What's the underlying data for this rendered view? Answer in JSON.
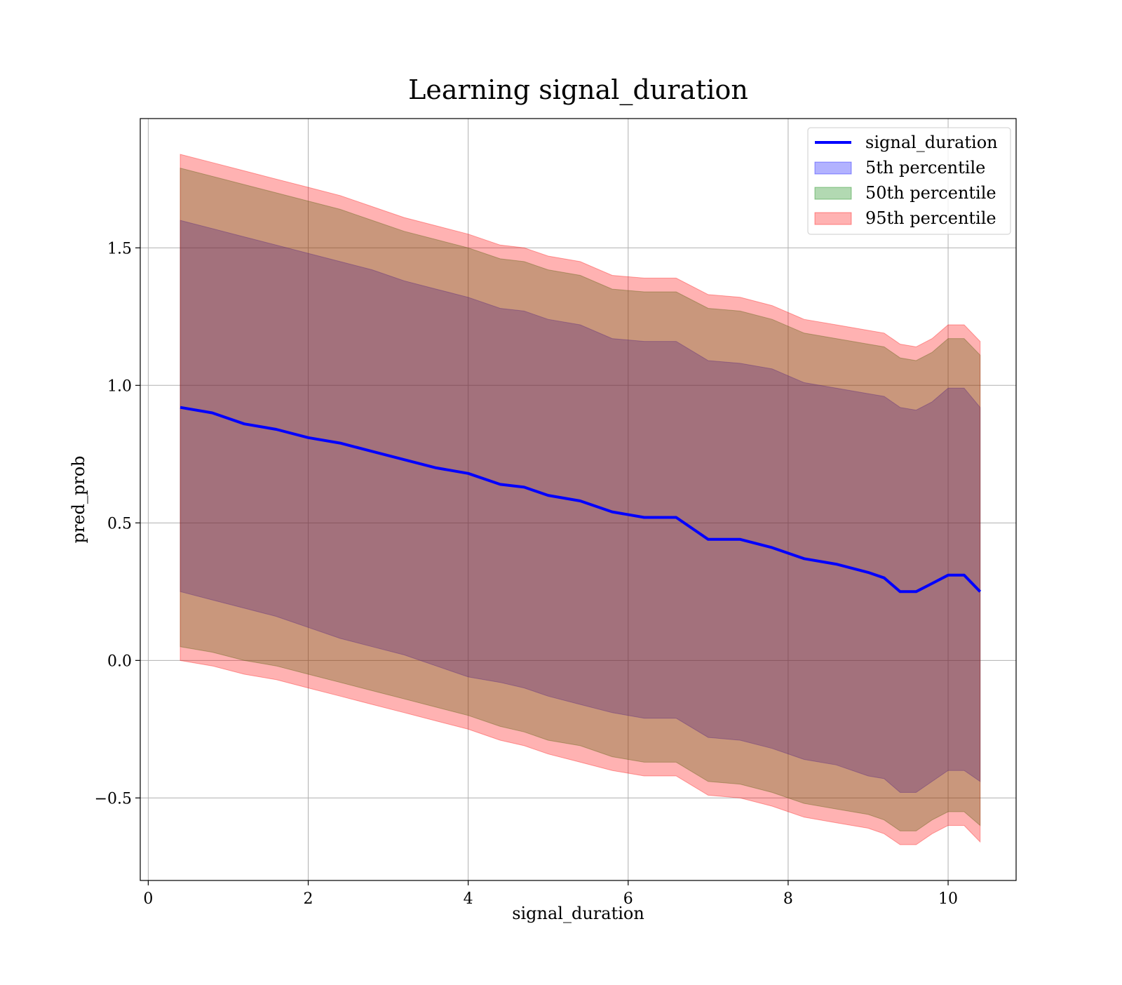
{
  "chart_data": {
    "type": "area",
    "title": "Learning signal_duration",
    "xlabel": "signal_duration",
    "ylabel": "pred_prob",
    "xlim": [
      -0.1,
      10.85
    ],
    "ylim": [
      -0.8,
      1.97
    ],
    "x_ticks": [
      0,
      2,
      4,
      6,
      8,
      10
    ],
    "x_tick_labels": [
      "0",
      "2",
      "4",
      "6",
      "8",
      "10"
    ],
    "y_ticks": [
      -0.5,
      0.0,
      0.5,
      1.0,
      1.5
    ],
    "y_tick_labels": [
      "−0.5",
      "0.0",
      "0.5",
      "1.0",
      "1.5"
    ],
    "grid": true,
    "legend_position": "top-right",
    "colors": {
      "line": "#0000ff",
      "band_5th": "#0000ff",
      "band_50th": "#008000",
      "band_95th": "#ff0000",
      "grid": "#b0b0b0"
    },
    "x": [
      0.4,
      0.8,
      1.2,
      1.6,
      2.0,
      2.4,
      2.8,
      3.2,
      3.6,
      4.0,
      4.4,
      4.7,
      5.0,
      5.4,
      5.8,
      6.2,
      6.6,
      7.0,
      7.4,
      7.8,
      8.2,
      8.6,
      9.0,
      9.2,
      9.4,
      9.6,
      9.8,
      10.0,
      10.2,
      10.4
    ],
    "series": [
      {
        "name": "signal_duration",
        "kind": "line",
        "values": [
          0.92,
          0.9,
          0.86,
          0.84,
          0.81,
          0.79,
          0.76,
          0.73,
          0.7,
          0.68,
          0.64,
          0.63,
          0.6,
          0.58,
          0.54,
          0.52,
          0.52,
          0.44,
          0.44,
          0.41,
          0.37,
          0.35,
          0.32,
          0.3,
          0.25,
          0.25,
          0.28,
          0.31,
          0.31,
          0.25
        ]
      }
    ],
    "bands": [
      {
        "name": "5th percentile",
        "lower": [
          0.25,
          0.22,
          0.19,
          0.16,
          0.12,
          0.08,
          0.05,
          0.02,
          -0.02,
          -0.06,
          -0.08,
          -0.1,
          -0.13,
          -0.16,
          -0.19,
          -0.21,
          -0.21,
          -0.28,
          -0.29,
          -0.32,
          -0.36,
          -0.38,
          -0.42,
          -0.43,
          -0.48,
          -0.48,
          -0.44,
          -0.4,
          -0.4,
          -0.44
        ],
        "upper": [
          1.6,
          1.57,
          1.54,
          1.51,
          1.48,
          1.45,
          1.42,
          1.38,
          1.35,
          1.32,
          1.28,
          1.27,
          1.24,
          1.22,
          1.17,
          1.16,
          1.16,
          1.09,
          1.08,
          1.06,
          1.01,
          0.99,
          0.97,
          0.96,
          0.92,
          0.91,
          0.94,
          0.99,
          0.99,
          0.92
        ]
      },
      {
        "name": "50th percentile",
        "lower": [
          0.05,
          0.03,
          0.0,
          -0.02,
          -0.05,
          -0.08,
          -0.11,
          -0.14,
          -0.17,
          -0.2,
          -0.24,
          -0.26,
          -0.29,
          -0.31,
          -0.35,
          -0.37,
          -0.37,
          -0.44,
          -0.45,
          -0.48,
          -0.52,
          -0.54,
          -0.56,
          -0.58,
          -0.62,
          -0.62,
          -0.58,
          -0.55,
          -0.55,
          -0.6
        ],
        "upper": [
          1.79,
          1.76,
          1.73,
          1.7,
          1.67,
          1.64,
          1.6,
          1.56,
          1.53,
          1.5,
          1.46,
          1.45,
          1.42,
          1.4,
          1.35,
          1.34,
          1.34,
          1.28,
          1.27,
          1.24,
          1.19,
          1.17,
          1.15,
          1.14,
          1.1,
          1.09,
          1.12,
          1.17,
          1.17,
          1.11
        ]
      },
      {
        "name": "95th percentile",
        "lower": [
          0.0,
          -0.02,
          -0.05,
          -0.07,
          -0.1,
          -0.13,
          -0.16,
          -0.19,
          -0.22,
          -0.25,
          -0.29,
          -0.31,
          -0.34,
          -0.37,
          -0.4,
          -0.42,
          -0.42,
          -0.49,
          -0.5,
          -0.53,
          -0.57,
          -0.59,
          -0.61,
          -0.63,
          -0.67,
          -0.67,
          -0.63,
          -0.6,
          -0.6,
          -0.66
        ],
        "upper": [
          1.84,
          1.81,
          1.78,
          1.75,
          1.72,
          1.69,
          1.65,
          1.61,
          1.58,
          1.55,
          1.51,
          1.5,
          1.47,
          1.45,
          1.4,
          1.39,
          1.39,
          1.33,
          1.32,
          1.29,
          1.24,
          1.22,
          1.2,
          1.19,
          1.15,
          1.14,
          1.17,
          1.22,
          1.22,
          1.16
        ]
      }
    ]
  }
}
